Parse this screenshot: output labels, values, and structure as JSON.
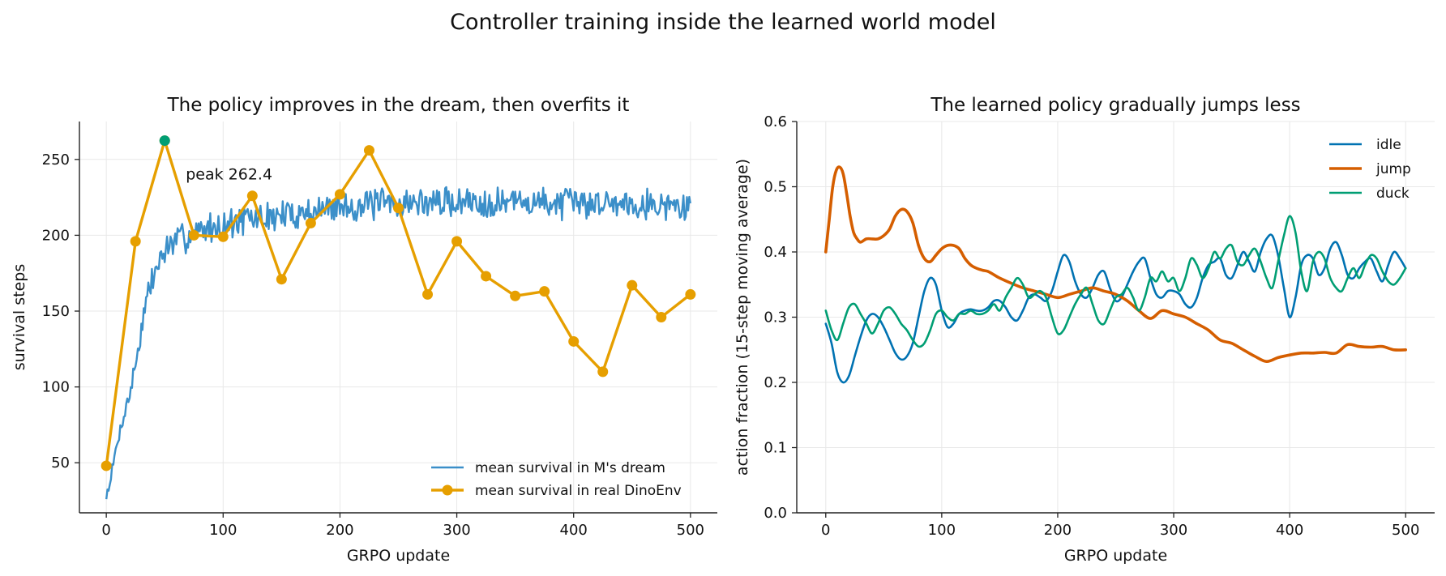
{
  "figure": {
    "title": "Controller training inside the learned world model"
  },
  "chart_data": [
    {
      "type": "line",
      "title": "The policy improves in the dream, then overfits it",
      "xlabel": "GRPO update",
      "ylabel": "survival steps",
      "xlim": [
        -23,
        523
      ],
      "ylim": [
        17,
        275
      ],
      "xticks": [
        0,
        100,
        200,
        300,
        400,
        500
      ],
      "yticks": [
        50,
        100,
        150,
        200,
        250
      ],
      "grid": true,
      "legend": "lower-right",
      "annotation": {
        "text": "peak 262.4",
        "x": 50,
        "y": 262.4,
        "color": "#009e73"
      },
      "series": [
        {
          "name": "mean survival in M's dream",
          "color": "#3b8fc9",
          "style": "line",
          "anchors": [
            [
              0,
              27
            ],
            [
              5,
              45
            ],
            [
              10,
              65
            ],
            [
              15,
              82
            ],
            [
              20,
              95
            ],
            [
              25,
              115
            ],
            [
              30,
              138
            ],
            [
              35,
              160
            ],
            [
              40,
              172
            ],
            [
              45,
              182
            ],
            [
              50,
              190
            ],
            [
              60,
              196
            ],
            [
              70,
              200
            ],
            [
              80,
              203
            ],
            [
              100,
              207
            ],
            [
              120,
              210
            ],
            [
              150,
              213
            ],
            [
              180,
              216
            ],
            [
              200,
              219
            ],
            [
              250,
              221
            ],
            [
              300,
              222
            ],
            [
              350,
              222
            ],
            [
              400,
              221
            ],
            [
              450,
              222
            ],
            [
              500,
              218
            ]
          ],
          "noise_amplitude": 9
        },
        {
          "name": "mean survival in real DinoEnv",
          "color": "#e69f00",
          "style": "line-marker",
          "x": [
            0,
            25,
            50,
            75,
            100,
            125,
            150,
            175,
            200,
            225,
            250,
            275,
            300,
            325,
            350,
            375,
            400,
            425,
            450,
            475,
            500
          ],
          "y": [
            48,
            196,
            262.4,
            200,
            199,
            226,
            171,
            208,
            227,
            256,
            218,
            161,
            196,
            173,
            160,
            163,
            130,
            110,
            167,
            146,
            161
          ]
        }
      ]
    },
    {
      "type": "line",
      "title": "The learned policy gradually jumps less",
      "xlabel": "GRPO update",
      "ylabel": "action fraction (15-step moving average)",
      "xlim": [
        -25,
        525
      ],
      "ylim": [
        0.0,
        0.6
      ],
      "xticks": [
        0,
        100,
        200,
        300,
        400,
        500
      ],
      "yticks": [
        "0.0",
        "0.1",
        "0.2",
        "0.3",
        "0.4",
        "0.5",
        "0.6"
      ],
      "grid": true,
      "legend": "upper-right",
      "series": [
        {
          "name": "idle",
          "color": "#0072b2",
          "width": 2.6,
          "x": [
            0,
            5,
            10,
            15,
            20,
            25,
            30,
            35,
            40,
            45,
            50,
            55,
            60,
            65,
            70,
            75,
            80,
            85,
            90,
            95,
            100,
            105,
            110,
            115,
            120,
            125,
            130,
            135,
            140,
            145,
            150,
            155,
            160,
            165,
            170,
            175,
            180,
            185,
            190,
            195,
            200,
            205,
            210,
            215,
            220,
            225,
            230,
            235,
            240,
            245,
            250,
            255,
            260,
            265,
            270,
            275,
            280,
            285,
            290,
            295,
            300,
            305,
            310,
            315,
            320,
            325,
            330,
            335,
            340,
            345,
            350,
            355,
            360,
            365,
            370,
            375,
            380,
            385,
            390,
            395,
            400,
            405,
            410,
            415,
            420,
            425,
            430,
            435,
            440,
            445,
            450,
            455,
            460,
            465,
            470,
            475,
            480,
            485,
            490,
            495,
            500
          ],
          "y": [
            0.29,
            0.26,
            0.215,
            0.2,
            0.21,
            0.24,
            0.27,
            0.295,
            0.305,
            0.3,
            0.285,
            0.265,
            0.245,
            0.235,
            0.24,
            0.26,
            0.3,
            0.34,
            0.36,
            0.35,
            0.31,
            0.285,
            0.29,
            0.305,
            0.31,
            0.312,
            0.31,
            0.31,
            0.315,
            0.325,
            0.325,
            0.315,
            0.3,
            0.295,
            0.31,
            0.33,
            0.335,
            0.33,
            0.325,
            0.34,
            0.37,
            0.395,
            0.385,
            0.355,
            0.335,
            0.33,
            0.345,
            0.365,
            0.37,
            0.345,
            0.325,
            0.33,
            0.35,
            0.37,
            0.385,
            0.39,
            0.36,
            0.335,
            0.33,
            0.34,
            0.34,
            0.335,
            0.32,
            0.315,
            0.33,
            0.36,
            0.38,
            0.385,
            0.39,
            0.365,
            0.36,
            0.38,
            0.4,
            0.385,
            0.37,
            0.4,
            0.42,
            0.425,
            0.395,
            0.345,
            0.3,
            0.33,
            0.38,
            0.395,
            0.39,
            0.365,
            0.375,
            0.405,
            0.415,
            0.395,
            0.365,
            0.36,
            0.375,
            0.385,
            0.39,
            0.37,
            0.355,
            0.38,
            0.4,
            0.39,
            0.375
          ]
        },
        {
          "name": "jump",
          "color": "#d55e00",
          "width": 3.6,
          "x": [
            0,
            3,
            6,
            9,
            12,
            15,
            18,
            21,
            24,
            27,
            30,
            35,
            40,
            45,
            50,
            55,
            60,
            65,
            70,
            75,
            80,
            85,
            90,
            95,
            100,
            105,
            110,
            115,
            120,
            125,
            130,
            135,
            140,
            145,
            150,
            160,
            170,
            180,
            190,
            200,
            210,
            220,
            230,
            240,
            250,
            260,
            270,
            280,
            290,
            300,
            310,
            320,
            330,
            340,
            350,
            360,
            370,
            380,
            390,
            400,
            410,
            420,
            430,
            440,
            450,
            460,
            470,
            480,
            490,
            500
          ],
          "y": [
            0.4,
            0.45,
            0.5,
            0.525,
            0.53,
            0.52,
            0.49,
            0.455,
            0.43,
            0.42,
            0.415,
            0.42,
            0.42,
            0.42,
            0.425,
            0.435,
            0.455,
            0.465,
            0.462,
            0.445,
            0.41,
            0.39,
            0.385,
            0.395,
            0.405,
            0.41,
            0.41,
            0.405,
            0.39,
            0.38,
            0.375,
            0.372,
            0.37,
            0.365,
            0.36,
            0.352,
            0.345,
            0.34,
            0.335,
            0.33,
            0.335,
            0.34,
            0.345,
            0.34,
            0.335,
            0.325,
            0.31,
            0.298,
            0.31,
            0.305,
            0.3,
            0.29,
            0.28,
            0.265,
            0.26,
            0.25,
            0.24,
            0.232,
            0.238,
            0.242,
            0.245,
            0.245,
            0.246,
            0.245,
            0.258,
            0.255,
            0.254,
            0.255,
            0.25,
            0.25
          ]
        },
        {
          "name": "duck",
          "color": "#009e73",
          "width": 2.6,
          "x": [
            0,
            5,
            10,
            15,
            20,
            25,
            30,
            35,
            40,
            45,
            50,
            55,
            60,
            65,
            70,
            75,
            80,
            85,
            90,
            95,
            100,
            105,
            110,
            115,
            120,
            125,
            130,
            135,
            140,
            145,
            150,
            155,
            160,
            165,
            170,
            175,
            180,
            185,
            190,
            195,
            200,
            205,
            210,
            215,
            220,
            225,
            230,
            235,
            240,
            245,
            250,
            255,
            260,
            265,
            270,
            275,
            280,
            285,
            290,
            295,
            300,
            305,
            310,
            315,
            320,
            325,
            330,
            335,
            340,
            345,
            350,
            355,
            360,
            365,
            370,
            375,
            380,
            385,
            390,
            395,
            400,
            405,
            410,
            415,
            420,
            425,
            430,
            435,
            440,
            445,
            450,
            455,
            460,
            465,
            470,
            475,
            480,
            485,
            490,
            495,
            500
          ],
          "y": [
            0.31,
            0.28,
            0.265,
            0.29,
            0.315,
            0.32,
            0.305,
            0.29,
            0.275,
            0.29,
            0.31,
            0.315,
            0.305,
            0.29,
            0.28,
            0.265,
            0.255,
            0.26,
            0.28,
            0.305,
            0.31,
            0.3,
            0.295,
            0.305,
            0.305,
            0.31,
            0.305,
            0.305,
            0.31,
            0.32,
            0.31,
            0.33,
            0.345,
            0.36,
            0.35,
            0.33,
            0.335,
            0.34,
            0.33,
            0.3,
            0.275,
            0.28,
            0.3,
            0.32,
            0.335,
            0.345,
            0.32,
            0.295,
            0.29,
            0.31,
            0.33,
            0.335,
            0.345,
            0.33,
            0.31,
            0.33,
            0.36,
            0.355,
            0.37,
            0.355,
            0.36,
            0.34,
            0.36,
            0.39,
            0.38,
            0.36,
            0.375,
            0.4,
            0.39,
            0.405,
            0.41,
            0.385,
            0.38,
            0.395,
            0.405,
            0.385,
            0.36,
            0.345,
            0.385,
            0.425,
            0.455,
            0.43,
            0.37,
            0.34,
            0.385,
            0.4,
            0.39,
            0.36,
            0.345,
            0.34,
            0.36,
            0.375,
            0.36,
            0.38,
            0.395,
            0.39,
            0.37,
            0.355,
            0.35,
            0.36,
            0.375
          ]
        }
      ]
    }
  ]
}
